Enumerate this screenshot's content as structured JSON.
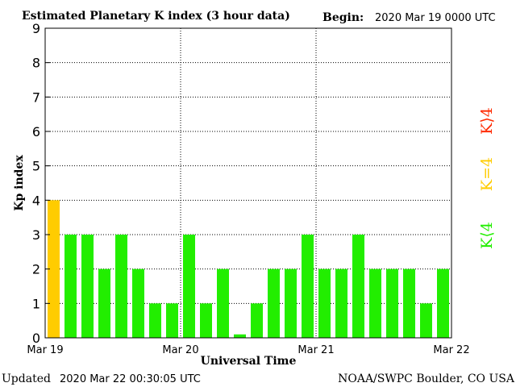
{
  "header": {
    "title": "Estimated Planetary K index (3 hour data)",
    "begin_label": "Begin:",
    "begin_value": "2020 Mar 19 0000 UTC"
  },
  "footer": {
    "updated_label": "Updated",
    "updated_value": "2020 Mar 22 00:30:05 UTC",
    "credit": "NOAA/SWPC Boulder, CO USA"
  },
  "legend": {
    "storm": {
      "label": "K⟩4",
      "color": "#ff2a00"
    },
    "threshold": {
      "label": "K=4",
      "color": "#ffcc00"
    },
    "quiet": {
      "label": "K⟨4",
      "color": "#22ee00"
    }
  },
  "chart_data": {
    "type": "bar",
    "title": "Estimated Planetary K index (3 hour data)",
    "xlabel": "Universal Time",
    "ylabel": "Kp index",
    "ylim": [
      0,
      9
    ],
    "yticks": [
      "0",
      "1",
      "2",
      "3",
      "4",
      "5",
      "6",
      "7",
      "8",
      "9"
    ],
    "xticks": [
      "Mar 19",
      "Mar 20",
      "Mar 21",
      "Mar 22"
    ],
    "values": [
      4,
      3,
      3,
      2,
      3,
      2,
      1,
      1,
      3,
      1,
      2,
      0.1,
      1,
      2,
      2,
      3,
      2,
      2,
      3,
      2,
      2,
      2,
      1,
      2
    ],
    "grid": true,
    "colors": {
      "below4": "#22ee00",
      "equal4": "#ffcc00",
      "above4": "#ff2a00"
    }
  }
}
